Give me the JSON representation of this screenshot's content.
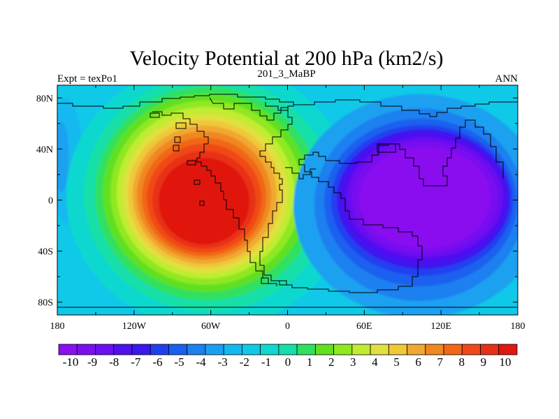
{
  "chart_data": {
    "type": "heatmap",
    "title": "Velocity Potential at 200 hPa (km2/s)",
    "subtitle_left": "Expt = texPo1",
    "subtitle_center": "201_3_MaBP",
    "subtitle_right": "ANN",
    "x_ticks": [
      "180",
      "120W",
      "60W",
      "0",
      "60E",
      "120E",
      "180"
    ],
    "x_tick_values": [
      -180,
      -120,
      -60,
      0,
      60,
      120,
      180
    ],
    "y_ticks": [
      "80N",
      "40N",
      "0",
      "40S",
      "80S"
    ],
    "y_tick_values": [
      80,
      40,
      0,
      -40,
      -80
    ],
    "xlim": [
      -180,
      180
    ],
    "ylim": [
      -90,
      90
    ],
    "colorbar": {
      "labels": [
        "-10",
        "-9",
        "-8",
        "-7",
        "-6",
        "-5",
        "-4",
        "-3",
        "-2",
        "-1",
        "0",
        "1",
        "2",
        "3",
        "4",
        "5",
        "6",
        "7",
        "8",
        "9",
        "10"
      ],
      "colors": [
        "#8a10f0",
        "#7a10f0",
        "#6a10f0",
        "#5010f0",
        "#3c18f0",
        "#2040f0",
        "#1a60f0",
        "#1c80f0",
        "#1aa0f0",
        "#12b8f0",
        "#10c8e8",
        "#10d8d0",
        "#14e0a8",
        "#30e060",
        "#60e020",
        "#90e820",
        "#c0ec30",
        "#e0e040",
        "#f0c838",
        "#f0a830",
        "#f08820",
        "#f06818",
        "#f04818",
        "#e83018",
        "#e01810"
      ]
    },
    "features": [
      {
        "name": "positive-maximum",
        "lon": -60,
        "lat": 5,
        "value": 10
      },
      {
        "name": "negative-minimum",
        "lon": 100,
        "lat": 10,
        "value": -10
      }
    ],
    "grid": false
  }
}
